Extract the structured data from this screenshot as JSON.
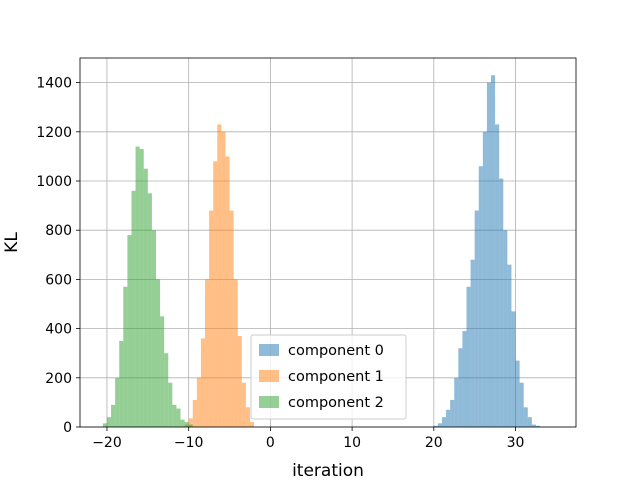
{
  "chart_data": {
    "type": "histogram",
    "title": "",
    "xlabel": "iteration",
    "ylabel": "KL",
    "xlim": [
      -23.3,
      37.4
    ],
    "ylim": [
      0,
      1500
    ],
    "xticks": [
      -20,
      -10,
      0,
      10,
      20,
      30
    ],
    "xtick_labels": [
      "−20",
      "−10",
      "0",
      "10",
      "20",
      "30"
    ],
    "yticks": [
      0,
      200,
      400,
      600,
      800,
      1000,
      1200,
      1400
    ],
    "ytick_labels": [
      "0",
      "200",
      "400",
      "600",
      "800",
      "1000",
      "1200",
      "1400"
    ],
    "grid": true,
    "legend_position": "lower-center",
    "alpha": 0.5,
    "series": [
      {
        "name": "component 0",
        "color": "#1f77b4",
        "bin_edges": [
          20.0,
          20.5,
          21.0,
          21.5,
          22.0,
          22.5,
          23.0,
          23.5,
          24.0,
          24.5,
          25.0,
          25.5,
          26.0,
          26.5,
          27.0,
          27.5,
          28.0,
          28.5,
          29.0,
          29.5,
          30.0,
          30.5,
          31.0,
          31.5,
          32.0,
          32.5,
          33.0
        ],
        "counts": [
          5,
          15,
          40,
          70,
          110,
          200,
          320,
          390,
          570,
          680,
          880,
          1060,
          1200,
          1400,
          1430,
          1230,
          1010,
          800,
          660,
          470,
          270,
          180,
          80,
          40,
          10,
          5
        ]
      },
      {
        "name": "component 1",
        "color": "#ff7f0e",
        "bin_edges": [
          -10.5,
          -10.0,
          -9.5,
          -9.0,
          -8.5,
          -8.0,
          -7.5,
          -7.0,
          -6.5,
          -6.0,
          -5.5,
          -5.0,
          -4.5,
          -4.0,
          -3.5,
          -3.0,
          -2.5,
          -2.0
        ],
        "counts": [
          10,
          35,
          110,
          200,
          360,
          600,
          880,
          1080,
          1230,
          1200,
          1100,
          880,
          600,
          370,
          180,
          80,
          20
        ]
      },
      {
        "name": "component 2",
        "color": "#2ca02c",
        "bin_edges": [
          -20.5,
          -20.0,
          -19.5,
          -19.0,
          -18.5,
          -18.0,
          -17.5,
          -17.0,
          -16.5,
          -16.0,
          -15.5,
          -15.0,
          -14.5,
          -14.0,
          -13.5,
          -13.0,
          -12.5,
          -12.0,
          -11.5,
          -11.0,
          -10.5,
          -10.0,
          -9.5
        ],
        "counts": [
          15,
          40,
          90,
          200,
          350,
          570,
          780,
          960,
          1140,
          1130,
          1050,
          950,
          800,
          600,
          450,
          300,
          180,
          90,
          75,
          30,
          20,
          10,
          5
        ]
      }
    ]
  }
}
